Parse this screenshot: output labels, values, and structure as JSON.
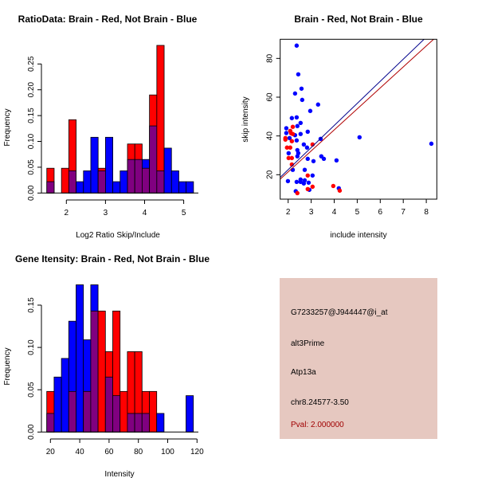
{
  "colors": {
    "brain": "#ff0000",
    "not_brain": "#0000ff",
    "overlap": "#800080",
    "info_bg": "#e6c8c0",
    "pval": "#a00000"
  },
  "chart_data": [
    {
      "type": "bar",
      "title": "RatioData: Brain - Red, Not Brain - Blue",
      "xlabel": "Log2 Ratio Skip/Include",
      "ylabel": "Frequency",
      "bin_start": 1.5,
      "bin_width": 0.1875,
      "xticks": [
        2,
        3,
        4,
        5
      ],
      "yticks": [
        "0.00",
        "0.05",
        "0.10",
        "0.15",
        "0.20",
        "0.25"
      ],
      "ylim": [
        0,
        0.29
      ],
      "series": [
        {
          "name": "Brain",
          "color": "#ff0000",
          "values": [
            0.048,
            0,
            0.048,
            0.142,
            0,
            0,
            0,
            0.048,
            0,
            0,
            0,
            0.095,
            0.095,
            0.048,
            0.19,
            0.286,
            0,
            0,
            0,
            0
          ]
        },
        {
          "name": "Not Brain",
          "color": "#0000ff",
          "values": [
            0.022,
            0,
            0,
            0.043,
            0.022,
            0.043,
            0.108,
            0.043,
            0.108,
            0.022,
            0.043,
            0.065,
            0.065,
            0.065,
            0.13,
            0.043,
            0.087,
            0.043,
            0.022,
            0.022
          ]
        }
      ]
    },
    {
      "type": "scatter",
      "title": "Brain - Red, Not Brain - Blue",
      "xlabel": "include intensity",
      "ylabel": "skip intensity",
      "xlim": [
        1.65,
        8.45
      ],
      "ylim": [
        7,
        90
      ],
      "xticks": [
        2,
        3,
        4,
        5,
        6,
        7,
        8
      ],
      "yticks": [
        20,
        40,
        60,
        80
      ],
      "series": [
        {
          "name": "Not Brain",
          "color": "#0000ff",
          "points": [
            [
              2.37,
              86.6
            ],
            [
              2.44,
              71.8
            ],
            [
              2.58,
              64.4
            ],
            [
              2.3,
              61.9
            ],
            [
              2.61,
              58.6
            ],
            [
              3.3,
              56.2
            ],
            [
              2.96,
              52.9
            ],
            [
              2.16,
              49.2
            ],
            [
              2.37,
              49.6
            ],
            [
              2.54,
              46.7
            ],
            [
              2.4,
              45.1
            ],
            [
              1.92,
              44.0
            ],
            [
              1.92,
              41.5
            ],
            [
              2.85,
              42.2
            ],
            [
              2.54,
              41.0
            ],
            [
              2.3,
              40.4
            ],
            [
              2.06,
              38.9
            ],
            [
              3.41,
              38.5
            ],
            [
              5.1,
              39.3
            ],
            [
              2.37,
              37.7
            ],
            [
              2.68,
              35.6
            ],
            [
              8.22,
              36.0
            ],
            [
              2.82,
              34.0
            ],
            [
              2.4,
              32.7
            ],
            [
              2.44,
              31.1
            ],
            [
              2.02,
              31.1
            ],
            [
              2.4,
              29.5
            ],
            [
              3.44,
              29.5
            ],
            [
              3.55,
              28.2
            ],
            [
              2.85,
              28.2
            ],
            [
              3.1,
              27.0
            ],
            [
              4.1,
              27.4
            ],
            [
              2.2,
              22.5
            ],
            [
              2.72,
              22.5
            ],
            [
              3.06,
              19.6
            ],
            [
              1.99,
              16.7
            ],
            [
              2.54,
              17.5
            ],
            [
              2.72,
              17.1
            ],
            [
              2.37,
              16.3
            ],
            [
              2.89,
              15.9
            ],
            [
              2.68,
              15.5
            ],
            [
              2.54,
              16.3
            ],
            [
              4.2,
              13.0
            ],
            [
              2.92,
              12.2
            ],
            [
              2.33,
              11.5
            ]
          ]
        },
        {
          "name": "Brain",
          "color": "#ff0000",
          "points": [
            [
              1.88,
              38.9
            ],
            [
              1.88,
              38.1
            ],
            [
              1.95,
              34.0
            ],
            [
              2.09,
              34.0
            ],
            [
              2.2,
              44.7
            ],
            [
              2.09,
              42.6
            ],
            [
              2.13,
              41.4
            ],
            [
              2.2,
              41.0
            ],
            [
              2.16,
              37.3
            ],
            [
              2.02,
              28.6
            ],
            [
              2.16,
              28.6
            ],
            [
              2.16,
              25.3
            ],
            [
              3.06,
              35.6
            ],
            [
              2.85,
              19.6
            ],
            [
              3.06,
              13.8
            ],
            [
              2.85,
              12.6
            ],
            [
              2.4,
              10.5
            ],
            [
              3.96,
              14.2
            ],
            [
              4.24,
              11.8
            ]
          ]
        }
      ],
      "fit_lines": [
        {
          "name": "Not Brain fit",
          "color": "#00008b",
          "slope": 11.4,
          "intercept": -0.2
        },
        {
          "name": "Brain fit",
          "color": "#b00000",
          "slope": 10.83,
          "intercept": -0.2
        }
      ]
    },
    {
      "type": "bar",
      "title": "Gene Itensity: Brain - Red, Not Brain - Blue",
      "xlabel": "Intensity",
      "ylabel": "Frequency",
      "bin_start": 17.5,
      "bin_width": 5,
      "xticks": [
        20,
        40,
        60,
        80,
        100,
        120
      ],
      "yticks": [
        "0.00",
        "0.05",
        "0.10",
        "0.15"
      ],
      "ylim": [
        0,
        0.175
      ],
      "series": [
        {
          "name": "Brain",
          "color": "#ff0000",
          "values": [
            0.048,
            0,
            0,
            0.048,
            0,
            0.048,
            0.143,
            0.143,
            0.095,
            0.143,
            0.048,
            0.095,
            0.095,
            0.048,
            0.048,
            0,
            0,
            0,
            0,
            0
          ]
        },
        {
          "name": "Not Brain",
          "color": "#0000ff",
          "values": [
            0.022,
            0.065,
            0.087,
            0.131,
            0.174,
            0.109,
            0.174,
            0,
            0.065,
            0.043,
            0,
            0.022,
            0.022,
            0.022,
            0,
            0.022,
            0,
            0,
            0,
            0.043
          ]
        }
      ]
    }
  ],
  "info": {
    "probe": "G7233257@J944447@i_at",
    "event": "alt3Prime",
    "gene": "Atp13a",
    "location": "chr8.24577-3.50",
    "pval": "Pval: 2.000000"
  }
}
